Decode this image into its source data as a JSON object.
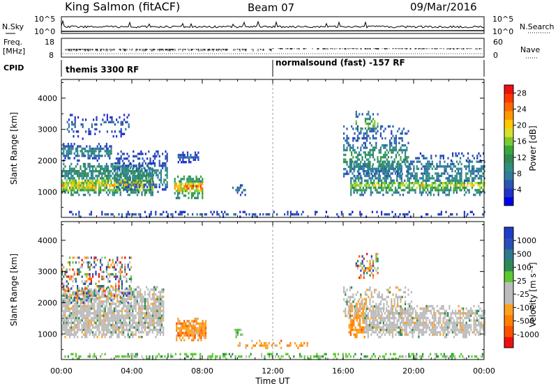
{
  "header": {
    "station": "King Salmon (fitACF)",
    "beam": "Beam 07",
    "date": "09/Mar/2016"
  },
  "strip_labels": {
    "nsky": "N.Sky",
    "nsky_ticks": [
      "10^5",
      "10^0"
    ],
    "nsearch": "N.Search",
    "nsearch_ticks": [
      "10^5",
      "10^0"
    ],
    "freq_line1": "Freq.",
    "freq_line2": "[MHz]",
    "freq_ticks": [
      "18",
      "8"
    ],
    "nave": "Nave",
    "nave_ticks": [
      "60",
      "0"
    ],
    "cpid": "CPID",
    "cpid_left": "themis 3300 RF",
    "cpid_right": "normalsound (fast) -157 RF"
  },
  "colors": {
    "power_scale": [
      "#0000f0",
      "#2233c8",
      "#2a55b0",
      "#2f7aa0",
      "#2e8f7e",
      "#2e8a52",
      "#38a83a",
      "#7ec832",
      "#d8e02a",
      "#ffc800",
      "#ff9800",
      "#ff6a00",
      "#ff3a00",
      "#ee1010"
    ],
    "velocity_scale": [
      "#1e3cc8",
      "#2a50b8",
      "#2e7a8c",
      "#2e8a52",
      "#5cc832",
      "#bcbcbc",
      "#bcbcbc",
      "#ffa020",
      "#ff8000",
      "#ff5000",
      "#ee1010"
    ],
    "ground_scatter": "#bcbcbc"
  },
  "chart_data": [
    {
      "type": "heatmap",
      "name": "power",
      "xlabel": "Time UT",
      "ylabel": "Slant Range [km]",
      "xticks": [
        "00:00",
        "04:00",
        "08:00",
        "12:00",
        "16:00",
        "20:00",
        "00:00"
      ],
      "xlim_hours": [
        0,
        24
      ],
      "yticks": [
        1000,
        2000,
        3000,
        4000
      ],
      "ylim_km": [
        180,
        4600
      ],
      "colorbar": {
        "label": "Power [dB]",
        "ticks": [
          4,
          8,
          12,
          16,
          20,
          24,
          28
        ],
        "range": [
          0,
          30
        ]
      },
      "regions": [
        {
          "t0": 0.0,
          "t1": 5.2,
          "r0": 900,
          "r1": 1900,
          "core": [
            1050,
            1400
          ],
          "peak_db": 24,
          "dens": 0.85
        },
        {
          "t0": 0.0,
          "t1": 2.8,
          "r0": 2000,
          "r1": 2550,
          "core": [
            2150,
            2400
          ],
          "peak_db": 12,
          "dens": 0.7
        },
        {
          "t0": 0.3,
          "t1": 3.8,
          "r0": 2700,
          "r1": 3500,
          "core": [
            2900,
            3300
          ],
          "peak_db": 8,
          "dens": 0.3
        },
        {
          "t0": 3.0,
          "t1": 6.0,
          "r0": 1000,
          "r1": 2300,
          "core": [
            1200,
            1800
          ],
          "peak_db": 12,
          "dens": 0.5
        },
        {
          "t0": 6.4,
          "t1": 8.0,
          "r0": 800,
          "r1": 1550,
          "core": [
            1000,
            1300
          ],
          "peak_db": 28,
          "dens": 0.8
        },
        {
          "t0": 6.6,
          "t1": 7.8,
          "r0": 1950,
          "r1": 2300,
          "core": [
            2050,
            2200
          ],
          "peak_db": 8,
          "dens": 0.6
        },
        {
          "t0": 9.7,
          "t1": 10.4,
          "r0": 900,
          "r1": 1250,
          "core": [
            1000,
            1150
          ],
          "peak_db": 10,
          "dens": 0.6
        },
        {
          "t0": 0.0,
          "t1": 14.6,
          "r0": 200,
          "r1": 420,
          "core": [
            250,
            350
          ],
          "peak_db": 8,
          "dens": 0.35
        },
        {
          "t0": 16.4,
          "t1": 24.0,
          "r0": 900,
          "r1": 2000,
          "core": [
            1050,
            1350
          ],
          "peak_db": 20,
          "dens": 0.7
        },
        {
          "t0": 16.0,
          "t1": 19.8,
          "r0": 1500,
          "r1": 3100,
          "core": [
            1700,
            2500
          ],
          "peak_db": 14,
          "dens": 0.45
        },
        {
          "t0": 16.7,
          "t1": 18.0,
          "r0": 2800,
          "r1": 3600,
          "core": [
            3000,
            3400
          ],
          "peak_db": 18,
          "dens": 0.4
        },
        {
          "t0": 20.0,
          "t1": 24.0,
          "r0": 2000,
          "r1": 2300,
          "core": [
            2050,
            2200
          ],
          "peak_db": 8,
          "dens": 0.3
        },
        {
          "t0": 15.0,
          "t1": 24.0,
          "r0": 200,
          "r1": 420,
          "core": [
            250,
            350
          ],
          "peak_db": 6,
          "dens": 0.3
        }
      ]
    },
    {
      "type": "heatmap",
      "name": "velocity",
      "xlabel": "Time UT",
      "ylabel": "Slant Range [km]",
      "xticks": [
        "00:00",
        "04:00",
        "08:00",
        "12:00",
        "16:00",
        "20:00",
        "00:00"
      ],
      "xlim_hours": [
        0,
        24
      ],
      "yticks": [
        1000,
        2000,
        3000,
        4000
      ],
      "ylim_km": [
        180,
        4600
      ],
      "colorbar": {
        "label": "Velocity [m s⁻¹]",
        "ticks": [
          1000,
          500,
          100,
          25,
          -25,
          -100,
          -500,
          -1000
        ],
        "range": [
          -1200,
          1200
        ]
      },
      "regions": [
        {
          "t0": 0.0,
          "t1": 5.8,
          "r0": 900,
          "r1": 2500,
          "core": [
            1000,
            1900
          ],
          "kind": "ground",
          "dens": 0.85
        },
        {
          "t0": 0.0,
          "t1": 4.0,
          "r0": 2000,
          "r1": 3500,
          "core": [
            2200,
            2600
          ],
          "kind": "mixed",
          "dens": 0.4
        },
        {
          "t0": 6.5,
          "t1": 8.2,
          "r0": 800,
          "r1": 1500,
          "core": [
            950,
            1350
          ],
          "kind": "away",
          "dens": 0.9
        },
        {
          "t0": 9.8,
          "t1": 10.3,
          "r0": 900,
          "r1": 1200,
          "core": [
            950,
            1150
          ],
          "kind": "toward_small",
          "dens": 0.6
        },
        {
          "t0": 10.0,
          "t1": 14.0,
          "r0": 550,
          "r1": 780,
          "core": [
            600,
            700
          ],
          "kind": "away",
          "dens": 0.6
        },
        {
          "t0": 0.0,
          "t1": 24.0,
          "r0": 200,
          "r1": 400,
          "core": [
            250,
            330
          ],
          "kind": "toward_small",
          "dens": 0.45
        },
        {
          "t0": 16.3,
          "t1": 17.3,
          "r0": 900,
          "r1": 2200,
          "core": [
            1000,
            1800
          ],
          "kind": "away",
          "dens": 0.7
        },
        {
          "t0": 17.2,
          "t1": 24.0,
          "r0": 900,
          "r1": 1900,
          "core": [
            1000,
            1400
          ],
          "kind": "ground",
          "dens": 0.8
        },
        {
          "t0": 16.7,
          "t1": 18.0,
          "r0": 2800,
          "r1": 3600,
          "core": [
            3000,
            3400
          ],
          "kind": "mixed",
          "dens": 0.4
        },
        {
          "t0": 16.0,
          "t1": 20.0,
          "r0": 1500,
          "r1": 2500,
          "core": [
            1700,
            2200
          ],
          "kind": "ground",
          "dens": 0.35
        }
      ]
    }
  ]
}
